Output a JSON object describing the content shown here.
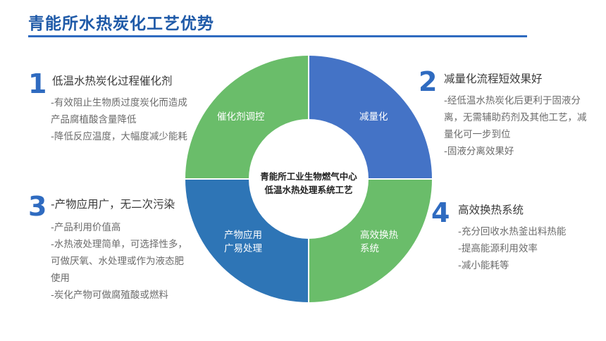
{
  "title": "青能所水热炭化工艺优势",
  "colors": {
    "title": "#1f5aa8",
    "number": "#2f6bc0",
    "green": "#6abd6a",
    "blue": "#4473c6",
    "blue_dark": "#2e75b6"
  },
  "center": {
    "line1": "青能所工业生物燃气中心",
    "line2": "低温水热处理系统工艺"
  },
  "ring": {
    "top_left": "催化剂调控",
    "top_right": "减量化",
    "bottom_right_line1": "高效换热",
    "bottom_right_line2": "系统",
    "bottom_left_line1": "产物应用",
    "bottom_left_line2": "广易处理"
  },
  "points": [
    {
      "number": "1",
      "heading": "低温水热炭化过程催化剂",
      "bullets": [
        "-有效阻止生物质过度炭化而造成产品腐植酸含量降低",
        "-降低反应温度，大幅度减少能耗"
      ]
    },
    {
      "number": "2",
      "heading": "减量化流程短效果好",
      "bullets": [
        "-经低温水热炭化后更利于固液分离，无需辅助药剂及其他工艺，减量化可一步到位",
        "-固液分离效果好"
      ]
    },
    {
      "number": "3",
      "heading": "-产物应用广，无二次污染",
      "bullets": [
        "-产品利用价值高",
        "-水热液处理简单，可选择性多，可做厌氧、水处理或作为液态肥使用",
        "-炭化产物可做腐殖酸或燃料"
      ]
    },
    {
      "number": "4",
      "heading": "高效换热系统",
      "bullets": [
        "-充分回收水热釜出料热能",
        "-提高能源利用效率",
        "-减小能耗等"
      ]
    }
  ]
}
